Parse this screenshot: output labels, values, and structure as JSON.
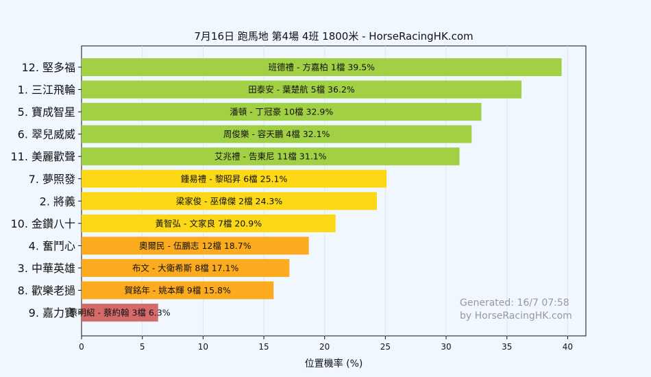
{
  "chart_data": {
    "type": "bar",
    "orientation": "horizontal",
    "title": "7月16日  跑馬地  第4場  4班  1800米 - HorseRacingHK.com",
    "xlabel": "位置機率 (%)",
    "ylabel": "",
    "xlim": [
      0,
      41.5
    ],
    "xticks": [
      0,
      5,
      10,
      15,
      20,
      25,
      30,
      35,
      40
    ],
    "grid": "vertical",
    "watermark": [
      "Generated: 16/7 07:58",
      "by HorseRacingHK.com"
    ],
    "categories": [
      "12. 堅多福",
      "1. 三江飛輪",
      "5. 寶成智星",
      "6. 翠兒威威",
      "11. 美麗歡聲",
      "7. 夢照發",
      "2. 將義",
      "10. 金鑽八十",
      "4. 奮鬥心",
      "3. 中華英雄",
      "8. 歡樂老撾",
      "9. 嘉力寶"
    ],
    "values": [
      39.5,
      36.2,
      32.9,
      32.1,
      31.1,
      25.1,
      24.3,
      20.9,
      18.7,
      17.1,
      15.8,
      6.3
    ],
    "bar_labels": [
      "班德禮 - 方嘉柏 1檔  39.5%",
      "田泰安 - 葉楚航 5檔  36.2%",
      "潘頓 - 丁冠豪 10檔  32.9%",
      "周俊樂 - 容天鵬 4檔  32.1%",
      "艾兆禮 - 告東尼 11檔  31.1%",
      "鍾易禮 - 黎昭昇 6檔  25.1%",
      "梁家俊 - 巫偉傑 2檔  24.3%",
      "黃智弘 - 文家良 7檔  20.9%",
      "奧爾民 - 伍鵬志 12檔  18.7%",
      "布文 - 大衛希斯 8檔  17.1%",
      "賀銘年 - 姚本輝 9檔  15.8%",
      "蔡明紹 - 蔡約翰 3檔  6.3%"
    ],
    "colors": [
      "#a2d044",
      "#a2d044",
      "#a2d044",
      "#a2d044",
      "#a2d044",
      "#fcd817",
      "#fcd817",
      "#fcd817",
      "#fcab1e",
      "#fcab1e",
      "#fcab1e",
      "#d46a6a"
    ]
  }
}
